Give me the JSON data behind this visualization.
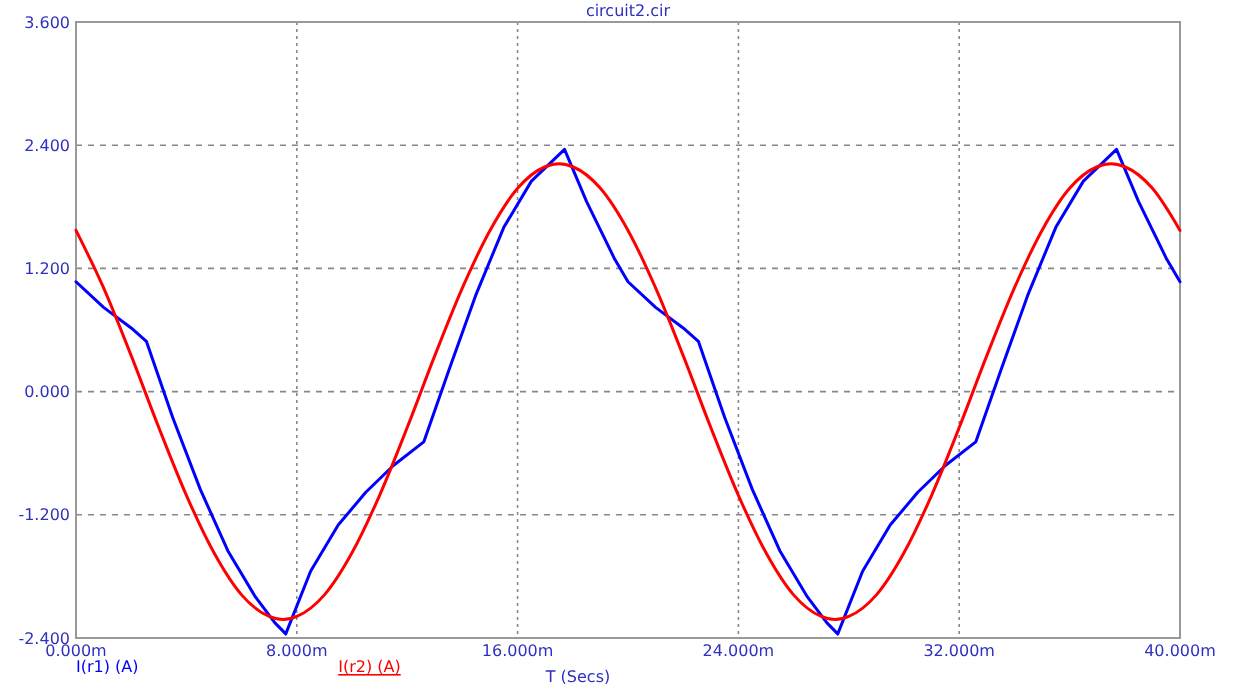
{
  "chart_data": {
    "type": "line",
    "title": "circuit2.cir",
    "xlabel": "T (Secs)",
    "xlim": [
      0,
      40
    ],
    "xticks": [
      {
        "value": 0,
        "label": "0.000m"
      },
      {
        "value": 8,
        "label": "8.000m"
      },
      {
        "value": 16,
        "label": "16.000m"
      },
      {
        "value": 24,
        "label": "24.000m"
      },
      {
        "value": 32,
        "label": "32.000m"
      },
      {
        "value": 40,
        "label": "40.000m"
      }
    ],
    "ylim": [
      -2.4,
      3.6
    ],
    "yticks": [
      {
        "value": -2.4,
        "label": "-2.400"
      },
      {
        "value": -1.2,
        "label": "-1.200"
      },
      {
        "value": 0,
        "label": "0.000"
      },
      {
        "value": 1.2,
        "label": "1.200"
      },
      {
        "value": 2.4,
        "label": "2.400"
      },
      {
        "value": 3.6,
        "label": "3.600"
      }
    ],
    "grid": true,
    "legend": "bottom",
    "marker": "none",
    "line_style": "solid",
    "series": [
      {
        "name": "I(r1) (A)",
        "color": "#0000ff",
        "x": [
          0,
          1,
          2,
          2.55,
          3.5,
          4.5,
          5.5,
          6.5,
          7.2,
          7.6,
          8.5,
          9.5,
          10.5,
          11.5,
          12.6,
          13.5,
          14.5,
          15.5,
          16.5,
          17.7,
          18.5,
          19.5,
          20,
          21,
          22,
          22.55,
          23.5,
          24.5,
          25.5,
          26.5,
          27.2,
          27.6,
          28.5,
          29.5,
          30.5,
          31.5,
          32.6,
          33.5,
          34.5,
          35.5,
          36.5,
          37.7,
          38.5,
          39.5,
          40
        ],
        "values": [
          1.07,
          0.82,
          0.62,
          0.49,
          -0.25,
          -0.95,
          -1.55,
          -2.0,
          -2.25,
          -2.36,
          -1.75,
          -1.3,
          -0.98,
          -0.72,
          -0.49,
          0.2,
          0.95,
          1.6,
          2.05,
          2.36,
          1.85,
          1.3,
          1.07,
          0.82,
          0.62,
          0.49,
          -0.25,
          -0.95,
          -1.55,
          -2.0,
          -2.25,
          -2.36,
          -1.75,
          -1.3,
          -0.98,
          -0.72,
          -0.49,
          0.2,
          0.95,
          1.6,
          2.05,
          2.36,
          1.85,
          1.3,
          1.07
        ]
      },
      {
        "name": "I(r2) (A)",
        "color": "#ff0000",
        "x": [
          0,
          1,
          2,
          3,
          4,
          5,
          6,
          7,
          7.5,
          8,
          9,
          10,
          11,
          12,
          13,
          14,
          15,
          16,
          17,
          17.5,
          18,
          19,
          20,
          21,
          22,
          23,
          24,
          25,
          26,
          27,
          27.5,
          28,
          29,
          30,
          31,
          32,
          33,
          34,
          35,
          36,
          37,
          37.5,
          38,
          39,
          40
        ],
        "values": [
          1.57,
          1.01,
          0.35,
          -0.35,
          -1.01,
          -1.57,
          -1.98,
          -2.19,
          -2.22,
          -2.19,
          -1.98,
          -1.57,
          -1.01,
          -0.35,
          0.35,
          1.01,
          1.57,
          1.98,
          2.19,
          2.22,
          2.19,
          1.98,
          1.57,
          1.01,
          0.35,
          -0.35,
          -1.01,
          -1.57,
          -1.98,
          -2.19,
          -2.22,
          -2.19,
          -1.98,
          -1.57,
          -1.01,
          -0.35,
          0.35,
          1.01,
          1.57,
          1.98,
          2.19,
          2.22,
          2.19,
          1.98,
          1.57
        ]
      }
    ]
  }
}
